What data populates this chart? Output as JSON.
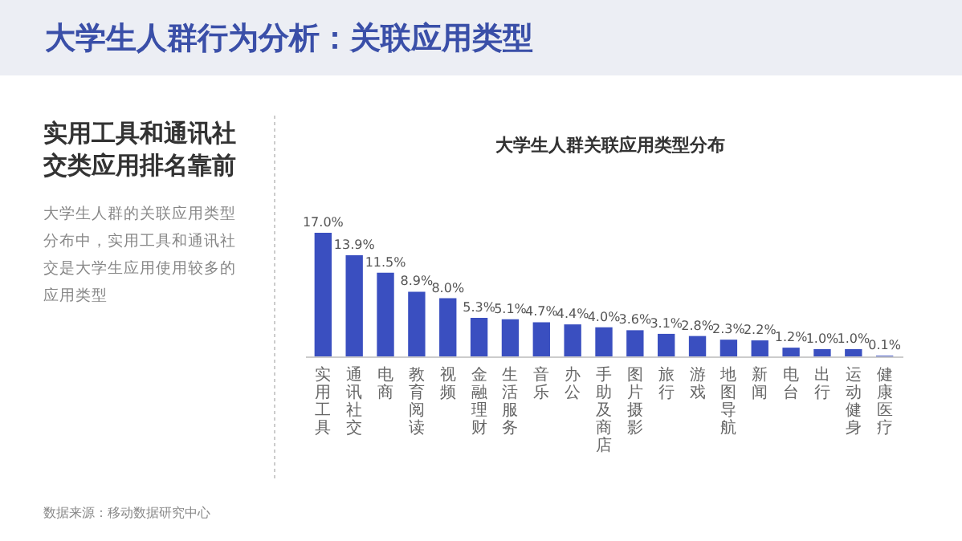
{
  "chart_data": {
    "type": "bar",
    "title": "大学生人群行为分析：关联应用类型",
    "subtitle": "大学生人群关联应用类型分布",
    "categories": [
      "实用工具",
      "通讯社交",
      "电商",
      "教育阅读",
      "视频",
      "金融理财",
      "生活服务",
      "音乐",
      "办公",
      "手助及商店",
      "图片摄影",
      "旅行",
      "游戏",
      "地图导航",
      "新闻",
      "电台",
      "出行",
      "运动健身",
      "健康医疗"
    ],
    "values": [
      17.0,
      13.9,
      11.5,
      8.9,
      8.0,
      5.3,
      5.1,
      4.7,
      4.4,
      4.0,
      3.6,
      3.1,
      2.8,
      2.3,
      2.2,
      1.2,
      1.0,
      1.0,
      0.1
    ],
    "value_labels": [
      "17.0%",
      "13.9%",
      "11.5%",
      "8.9%",
      "8.0%",
      "5.3%",
      "5.1%",
      "4.7%",
      "4.4%",
      "4.0%",
      "3.6%",
      "3.1%",
      "2.8%",
      "2.3%",
      "2.2%",
      "1.2%",
      "1.0%",
      "1.0%",
      "0.1%"
    ],
    "color": "#3a4fc0",
    "tick_labels": "x",
    "annotations": [
      "实用工具和通讯社交类应用排名靠前",
      "大学生人群的关联应用类型分布中，实用工具和通讯社交是大学生应用使用较多的应用类型",
      "数据来源：移动数据研究中心"
    ]
  }
}
